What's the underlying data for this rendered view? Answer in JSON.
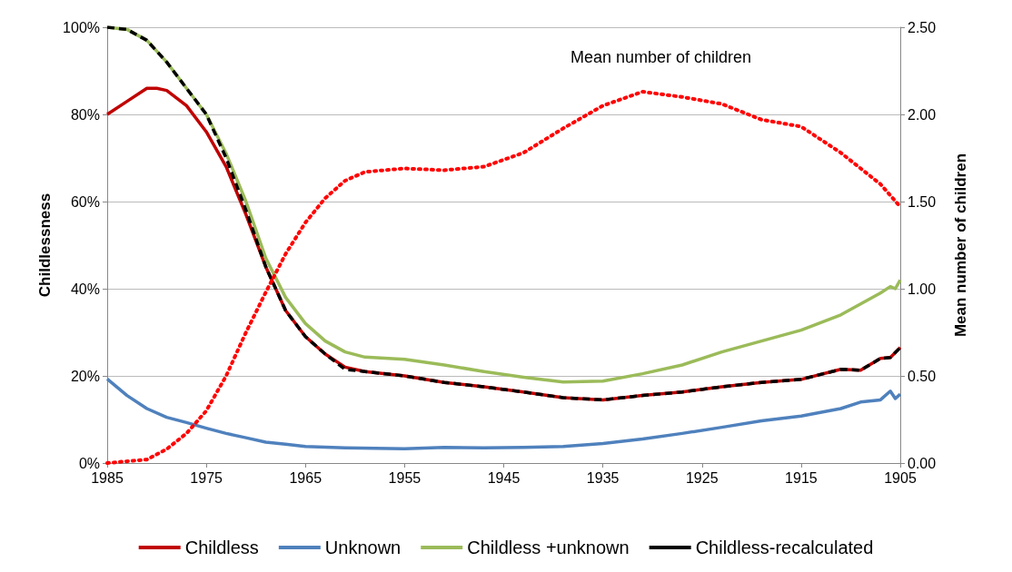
{
  "chart_data": {
    "type": "line",
    "xlabel": null,
    "ylabel": "Childlessness",
    "y2label": "Mean number of children",
    "xlim": [
      1985,
      1905
    ],
    "xticks": [
      1985,
      1975,
      1965,
      1955,
      1945,
      1935,
      1925,
      1915,
      1905
    ],
    "ylim": [
      0,
      100
    ],
    "yticks": [
      {
        "value": 0,
        "label": "0%"
      },
      {
        "value": 20,
        "label": "20%"
      },
      {
        "value": 40,
        "label": "40%"
      },
      {
        "value": 60,
        "label": "60%"
      },
      {
        "value": 80,
        "label": "80%"
      },
      {
        "value": 100,
        "label": "100%"
      }
    ],
    "y2lim": [
      0,
      2.5
    ],
    "y2ticks": [
      {
        "value": 0,
        "label": "0.00"
      },
      {
        "value": 0.5,
        "label": "0.50"
      },
      {
        "value": 1,
        "label": "1.00"
      },
      {
        "value": 1.5,
        "label": "1.50"
      },
      {
        "value": 2,
        "label": "2.00"
      },
      {
        "value": 2.5,
        "label": "2.50"
      }
    ],
    "grid": "y",
    "legend": "bottom",
    "marker": "none",
    "annotations": [
      "Mean number of children"
    ],
    "series": [
      {
        "name": "Childless",
        "color": "#c00000",
        "line_style": "solid",
        "x": [
          1985,
          1983,
          1981,
          1980,
          1979,
          1977,
          1975,
          1973,
          1971,
          1969,
          1967,
          1965,
          1963,
          1961,
          1959,
          1955,
          1951,
          1947,
          1943,
          1939,
          1935,
          1931,
          1927,
          1923,
          1919,
          1915,
          1911,
          1909,
          1907,
          1906,
          1905
        ],
        "values": [
          80,
          83,
          86,
          86,
          85.5,
          82,
          76,
          68,
          57,
          45,
          35,
          29,
          25,
          22,
          21,
          20,
          18.5,
          17.5,
          16.3,
          15,
          14.5,
          15.5,
          16.3,
          17.5,
          18.5,
          19.2,
          21.5,
          21.3,
          24,
          24.2,
          26.5
        ]
      },
      {
        "name": "Unknown",
        "color": "#4f81bd",
        "line_style": "solid",
        "x": [
          1985,
          1983,
          1981,
          1979,
          1977,
          1975,
          1973,
          1971,
          1969,
          1967,
          1965,
          1961,
          1955,
          1951,
          1947,
          1943,
          1939,
          1935,
          1931,
          1927,
          1923,
          1919,
          1915,
          1911,
          1909,
          1907,
          1906,
          1905.5,
          1905
        ],
        "values": [
          19.3,
          15.5,
          12.5,
          10.5,
          9.3,
          8,
          6.8,
          5.8,
          4.8,
          4.3,
          3.8,
          3.5,
          3.3,
          3.6,
          3.5,
          3.6,
          3.8,
          4.5,
          5.5,
          6.8,
          8.2,
          9.7,
          10.8,
          12.5,
          14,
          14.5,
          16.5,
          14.8,
          15.8
        ]
      },
      {
        "name": "Childless +unknown",
        "color": "#9bbb59",
        "line_style": "solid",
        "x": [
          1985,
          1983,
          1981,
          1979,
          1977,
          1975,
          1973,
          1971,
          1969,
          1967,
          1965,
          1963,
          1961,
          1959,
          1955,
          1951,
          1947,
          1943,
          1939,
          1935,
          1931,
          1927,
          1923,
          1919,
          1915,
          1911,
          1909,
          1907,
          1906,
          1905.5,
          1905
        ],
        "values": [
          100,
          99.5,
          97,
          92,
          86,
          80,
          71,
          60,
          47,
          38,
          32,
          28,
          25.5,
          24.3,
          23.8,
          22.5,
          21,
          19.7,
          18.6,
          18.8,
          20.5,
          22.5,
          25.5,
          28,
          30.5,
          34,
          36.5,
          39,
          40.5,
          40,
          42
        ]
      },
      {
        "name": "Childless-recalculated",
        "color": "#000000",
        "line_style": "dashed",
        "x": [
          1985,
          1983,
          1981,
          1979,
          1977,
          1975,
          1973,
          1971,
          1969,
          1967,
          1965,
          1963,
          1961,
          1959,
          1955,
          1951,
          1947,
          1943,
          1939,
          1935,
          1931,
          1927,
          1923,
          1919,
          1915,
          1911,
          1909,
          1907,
          1906,
          1905
        ],
        "values": [
          100,
          99.5,
          97,
          92,
          86,
          80,
          70,
          58,
          45,
          35,
          29,
          25,
          21.5,
          21,
          20,
          18.5,
          17.5,
          16.3,
          15,
          14.5,
          15.5,
          16.3,
          17.5,
          18.5,
          19.2,
          21.5,
          21.3,
          24,
          24.2,
          26.5
        ]
      },
      {
        "color": "#ff0000",
        "line_style": "dotted",
        "axis": "y2",
        "x": [
          1985,
          1981,
          1979,
          1977,
          1975,
          1973,
          1971,
          1969,
          1967,
          1965,
          1963,
          1961,
          1959,
          1955,
          1951,
          1947,
          1943,
          1939,
          1935,
          1931,
          1927,
          1923,
          1919,
          1915,
          1911,
          1907,
          1905
        ],
        "values": [
          0,
          0.02,
          0.08,
          0.17,
          0.3,
          0.5,
          0.75,
          0.98,
          1.2,
          1.38,
          1.52,
          1.62,
          1.67,
          1.69,
          1.68,
          1.7,
          1.78,
          1.92,
          2.05,
          2.13,
          2.1,
          2.06,
          1.97,
          1.93,
          1.78,
          1.6,
          1.47
        ]
      }
    ]
  }
}
